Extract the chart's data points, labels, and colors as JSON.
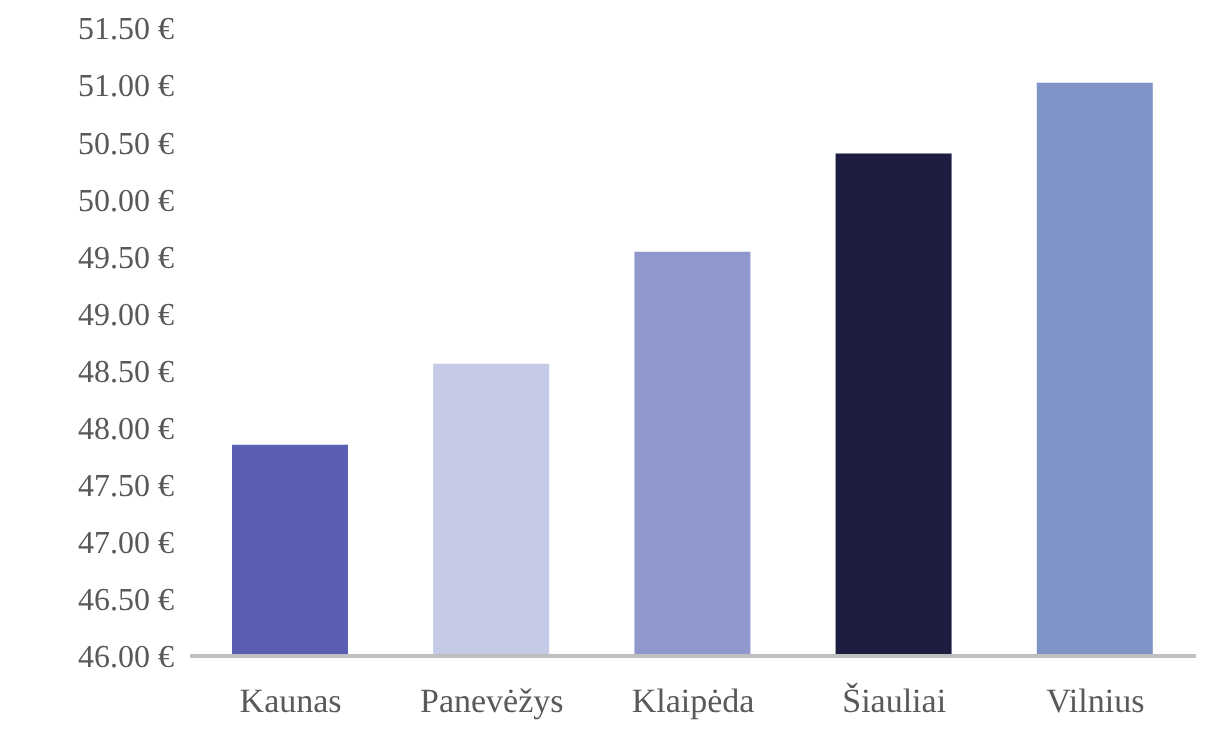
{
  "chart_data": {
    "type": "bar",
    "categories": [
      "Kaunas",
      "Panevėžys",
      "Klaipėda",
      "Šiauliai",
      "Vilnius"
    ],
    "values": [
      47.85,
      48.56,
      49.54,
      50.4,
      51.02
    ],
    "colors": [
      "#5b5fb4",
      "#c5cae6",
      "#9097cd",
      "#1c1d40",
      "#7f93c6"
    ],
    "ylim": [
      46,
      51.5
    ],
    "yticks": [
      {
        "value": 46,
        "label": "46.00 €"
      },
      {
        "value": 46.5,
        "label": "46.50 €"
      },
      {
        "value": 47,
        "label": "47.00 €"
      },
      {
        "value": 47.5,
        "label": "47.50 €"
      },
      {
        "value": 48,
        "label": "48.00 €"
      },
      {
        "value": 48.5,
        "label": "48.50 €"
      },
      {
        "value": 49,
        "label": "49.00 €"
      },
      {
        "value": 49.5,
        "label": "49.50 €"
      },
      {
        "value": 50,
        "label": "50.00 €"
      },
      {
        "value": 50.5,
        "label": "50.50 €"
      },
      {
        "value": 51,
        "label": "51.00 €"
      },
      {
        "value": 51.5,
        "label": "51.50 €"
      }
    ],
    "grid": false
  }
}
